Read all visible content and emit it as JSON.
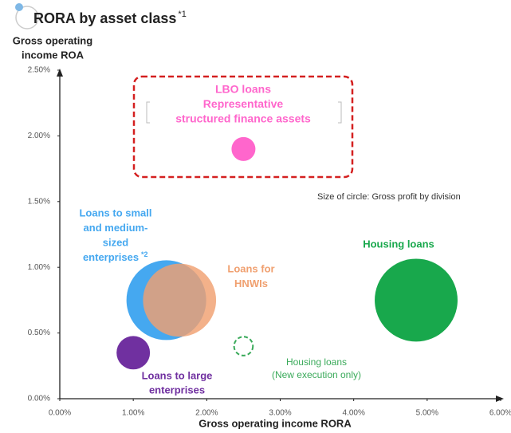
{
  "chart_data": {
    "type": "bubble",
    "title": "RORA by asset class",
    "title_note": "*1",
    "y_label": [
      "Gross operating",
      "income ROA"
    ],
    "x_label": "Gross operating income RORA",
    "annotation": "Size of circle: Gross profit by division",
    "xlim": [
      0,
      6
    ],
    "xticks": [
      {
        "value": 0,
        "label": "0.00%"
      },
      {
        "value": 1,
        "label": "1.00%"
      },
      {
        "value": 2,
        "label": "2.00%"
      },
      {
        "value": 3,
        "label": "3.00%"
      },
      {
        "value": 4,
        "label": "4.00%"
      },
      {
        "value": 5,
        "label": "5.00%"
      },
      {
        "value": 6,
        "label": "6.00%"
      }
    ],
    "ylim": [
      0,
      2.5
    ],
    "yticks": [
      {
        "value": 0,
        "label": "0.00%"
      },
      {
        "value": 0.5,
        "label": "0.50%"
      },
      {
        "value": 1,
        "label": "1.00%"
      },
      {
        "value": 1.5,
        "label": "1.50%"
      },
      {
        "value": 2,
        "label": "2.00%"
      },
      {
        "value": 2.5,
        "label": "2.50%"
      }
    ],
    "series": [
      {
        "label": [
          "LBO loans",
          "Representative",
          "structured finance assets"
        ],
        "color": "#ff66cc",
        "x": 2.5,
        "y": 1.9,
        "size": 2.25
      },
      {
        "label": [
          "Loans to small",
          "and medium-",
          "sized",
          "enterprises"
        ],
        "note": "*2",
        "color": "#45a8f0",
        "x": 1.45,
        "y": 0.75,
        "size": 25
      },
      {
        "label": [
          "Loans for",
          "HNWIs"
        ],
        "color": "#f0a070",
        "x": 1.63,
        "y": 0.75,
        "size": 21
      },
      {
        "label": [
          "Loans to large",
          "enterprises"
        ],
        "color": "#7030a0",
        "x": 1.0,
        "y": 0.35,
        "size": 4.4
      },
      {
        "label": [
          "Housing loans"
        ],
        "color": "#18a84c",
        "x": 4.85,
        "y": 0.75,
        "size": 27
      },
      {
        "label": [
          "Housing loans",
          "(New execution only)"
        ],
        "color": "#3aaa5a",
        "x": 2.5,
        "y": 0.4,
        "size": 1.4,
        "dashed": true
      }
    ]
  }
}
